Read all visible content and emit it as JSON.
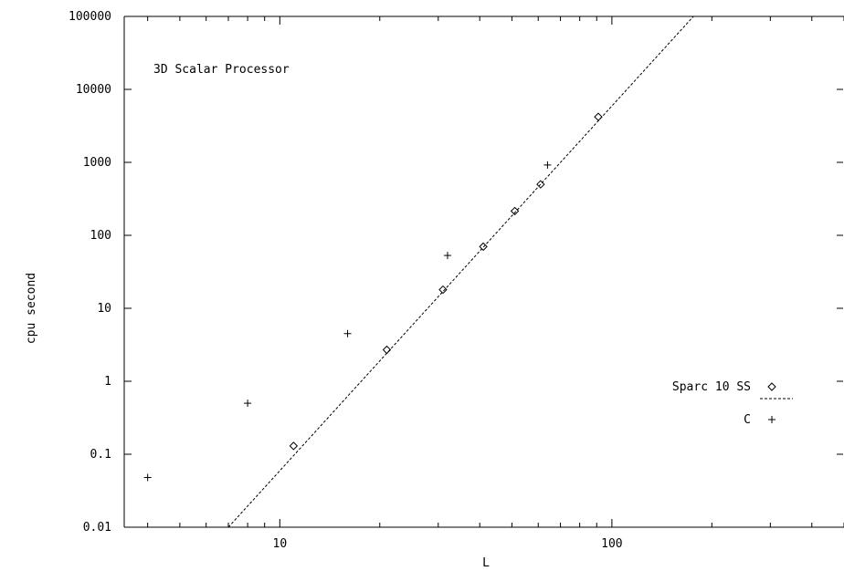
{
  "chart_data": {
    "type": "scatter",
    "title": "",
    "annotation": "3D Scalar Processor",
    "xlabel": "L",
    "ylabel": "cpu second",
    "xscale": "log",
    "yscale": "log",
    "xlim": [
      3.4,
      500
    ],
    "ylim": [
      0.01,
      100000
    ],
    "x_ticks": [
      {
        "value": 10,
        "label": "10"
      },
      {
        "value": 100,
        "label": "100"
      }
    ],
    "y_ticks": [
      {
        "value": 0.01,
        "label": "0.01"
      },
      {
        "value": 0.1,
        "label": "0.1"
      },
      {
        "value": 1,
        "label": "1"
      },
      {
        "value": 10,
        "label": "10"
      },
      {
        "value": 100,
        "label": "100"
      },
      {
        "value": 1000,
        "label": "1000"
      },
      {
        "value": 10000,
        "label": "10000"
      },
      {
        "value": 100000,
        "label": "100000"
      }
    ],
    "grid": false,
    "legend": "right",
    "legend_entries": [
      {
        "label": "Sparc 10 SS",
        "marker": "diamond"
      },
      {
        "label": "",
        "marker": "dashed-line"
      },
      {
        "label": "C",
        "marker": "plus"
      }
    ],
    "series": [
      {
        "name": "Sparc 10 SS",
        "marker": "diamond",
        "points": [
          {
            "x": 11,
            "y": 0.13
          },
          {
            "x": 21,
            "y": 2.7
          },
          {
            "x": 31,
            "y": 18
          },
          {
            "x": 41,
            "y": 70
          },
          {
            "x": 51,
            "y": 215
          },
          {
            "x": 61,
            "y": 500
          },
          {
            "x": 91,
            "y": 4200
          }
        ]
      },
      {
        "name": "C",
        "marker": "plus",
        "points": [
          {
            "x": 4,
            "y": 0.048
          },
          {
            "x": 8,
            "y": 0.5
          },
          {
            "x": 16,
            "y": 4.5
          },
          {
            "x": 32,
            "y": 53
          },
          {
            "x": 64,
            "y": 920
          }
        ]
      },
      {
        "name": "",
        "marker": "dashed-line",
        "points": [
          {
            "x": 7.0,
            "y": 0.01
          },
          {
            "x": 176,
            "y": 100000
          }
        ]
      }
    ]
  }
}
